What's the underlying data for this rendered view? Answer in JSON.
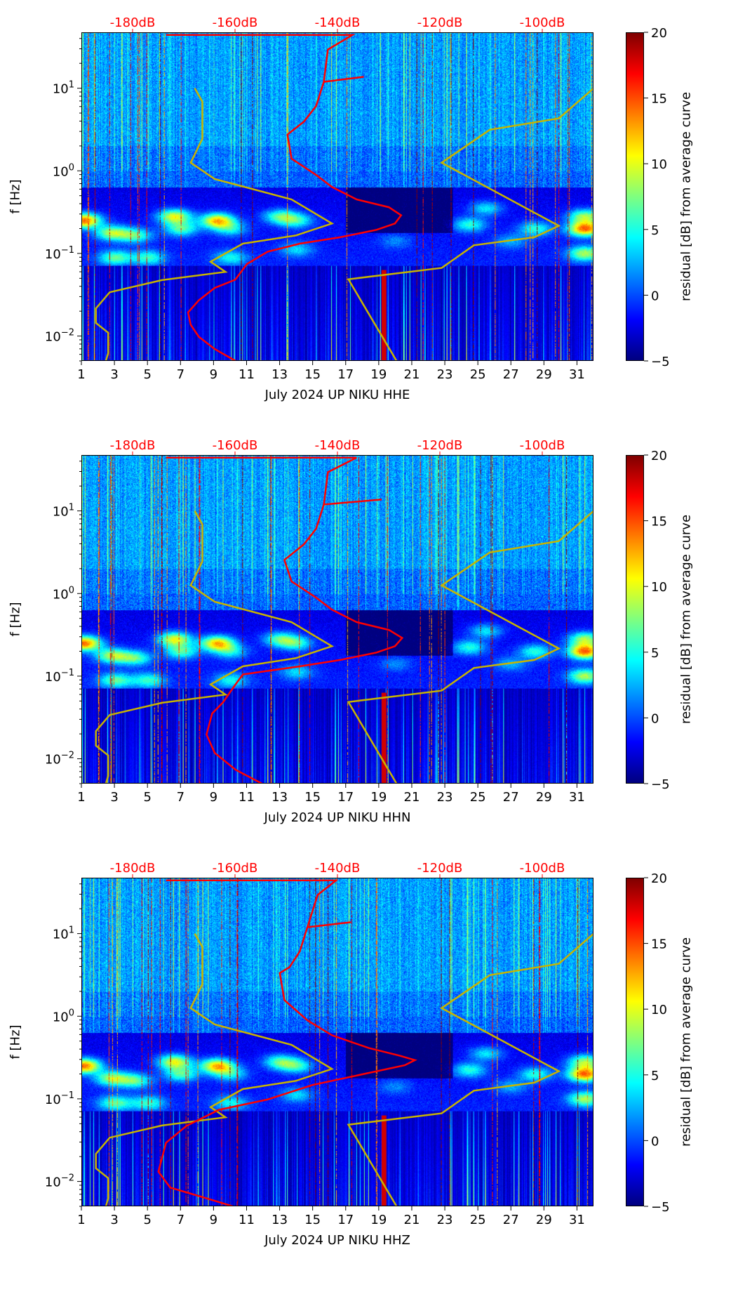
{
  "chart_data": [
    {
      "type": "heatmap",
      "xlabel": "July 2024 UP NIKU  HHE",
      "ylabel": "f [Hz]",
      "xlim": [
        1,
        32
      ],
      "ylim": [
        0.005,
        47.5
      ],
      "yscale": "log",
      "xticks": [
        1,
        3,
        5,
        7,
        9,
        11,
        13,
        15,
        17,
        19,
        21,
        23,
        25,
        27,
        29,
        31
      ],
      "yticks_exp": [
        -2,
        -1,
        0,
        1
      ],
      "top_axis": {
        "range": [
          -190,
          -90
        ],
        "ticks": [
          -180,
          -160,
          -140,
          -120,
          -100
        ],
        "labels": [
          "-180dB",
          "-160dB",
          "-140dB",
          "-120dB",
          "-100dB"
        ]
      },
      "colorbar": {
        "label": "residual [dB] from average curve",
        "range": [
          -5,
          20
        ],
        "ticks": [
          -5,
          0,
          5,
          10,
          15,
          20
        ],
        "tick_labels": [
          "−5",
          "0",
          "5",
          "10",
          "15",
          "20"
        ]
      },
      "series": {
        "average_curve": {
          "color": "#ff0000",
          "points": [
            [
              -173.6,
              45
            ],
            [
              -137.2,
              45
            ],
            [
              -142,
              30
            ],
            [
              -142.8,
              12.2
            ],
            [
              -135,
              14
            ],
            [
              -142.8,
              12.2
            ],
            [
              -144.3,
              6.2
            ],
            [
              -146.7,
              4
            ],
            [
              -149.9,
              2.8
            ],
            [
              -149.1,
              1.43
            ],
            [
              -144.3,
              0.91
            ],
            [
              -141.2,
              0.65
            ],
            [
              -136.4,
              0.46
            ],
            [
              -130.1,
              0.37
            ],
            [
              -127.7,
              0.295
            ],
            [
              -128.9,
              0.235
            ],
            [
              -132.5,
              0.197
            ],
            [
              -139.6,
              0.16
            ],
            [
              -147.5,
              0.134
            ],
            [
              -153.8,
              0.107
            ],
            [
              -157.8,
              0.076
            ],
            [
              -160.1,
              0.049
            ],
            [
              -164.1,
              0.039
            ],
            [
              -167.2,
              0.0276
            ],
            [
              -169.3,
              0.0197
            ],
            [
              -168.8,
              0.014
            ],
            [
              -167.2,
              0.01
            ],
            [
              -164.1,
              0.0071
            ],
            [
              -159.8,
              0.005
            ]
          ]
        },
        "low_noise_model": {
          "color": "#c8b400",
          "points": [
            [
              -168,
              10.2
            ],
            [
              -166.5,
              7
            ],
            [
              -166.5,
              2.5
            ],
            [
              -168.8,
              1.28
            ],
            [
              -164.1,
              0.81
            ],
            [
              -149.1,
              0.46
            ],
            [
              -141.2,
              0.235
            ],
            [
              -148.3,
              0.168
            ],
            [
              -158.6,
              0.134
            ],
            [
              -164.9,
              0.081
            ],
            [
              -162,
              0.061
            ],
            [
              -174.4,
              0.0485
            ],
            [
              -184.6,
              0.0346
            ],
            [
              -187.3,
              0.022
            ],
            [
              -187.3,
              0.0147
            ],
            [
              -184.9,
              0.0112
            ],
            [
              -184.9,
              0.00635
            ],
            [
              -185.4,
              0.005
            ]
          ]
        },
        "high_noise_model": {
          "color": "#c8b400",
          "points": [
            [
              -90.1,
              10.2
            ],
            [
              -96.9,
              4.4
            ],
            [
              -110.4,
              3.2
            ],
            [
              -119.8,
              1.28
            ],
            [
              -96.9,
              0.22
            ],
            [
              -101.7,
              0.16
            ],
            [
              -113.5,
              0.128
            ],
            [
              -119.8,
              0.068
            ],
            [
              -138,
              0.0497
            ],
            [
              -128.5,
              0.005
            ]
          ]
        }
      }
    },
    {
      "type": "heatmap",
      "xlabel": "July 2024 UP NIKU  HHN",
      "ylabel": "f [Hz]",
      "xlim": [
        1,
        32
      ],
      "ylim": [
        0.005,
        47.5
      ],
      "yscale": "log",
      "xticks": [
        1,
        3,
        5,
        7,
        9,
        11,
        13,
        15,
        17,
        19,
        21,
        23,
        25,
        27,
        29,
        31
      ],
      "yticks_exp": [
        -2,
        -1,
        0,
        1
      ],
      "top_axis": {
        "range": [
          -190,
          -90
        ],
        "ticks": [
          -180,
          -160,
          -140,
          -120,
          -100
        ],
        "labels": [
          "-180dB",
          "-160dB",
          "-140dB",
          "-120dB",
          "-100dB"
        ]
      },
      "colorbar": {
        "label": "residual [dB] from average curve",
        "range": [
          -5,
          20
        ],
        "ticks": [
          -5,
          0,
          5,
          10,
          15,
          20
        ],
        "tick_labels": [
          "−5",
          "0",
          "5",
          "10",
          "15",
          "20"
        ]
      },
      "series": {
        "average_curve": {
          "color": "#ff0000",
          "points": [
            [
              -173.6,
              45
            ],
            [
              -136.4,
              45
            ],
            [
              -142,
              30
            ],
            [
              -142.8,
              12.2
            ],
            [
              -131.5,
              14
            ],
            [
              -142.8,
              12.2
            ],
            [
              -144.3,
              6.2
            ],
            [
              -146.7,
              4
            ],
            [
              -150.5,
              2.6
            ],
            [
              -149.1,
              1.43
            ],
            [
              -144.3,
              0.91
            ],
            [
              -141.2,
              0.65
            ],
            [
              -136.4,
              0.46
            ],
            [
              -130.1,
              0.37
            ],
            [
              -127.5,
              0.295
            ],
            [
              -128.9,
              0.235
            ],
            [
              -132.5,
              0.197
            ],
            [
              -139.6,
              0.16
            ],
            [
              -147.5,
              0.134
            ],
            [
              -158.6,
              0.107
            ],
            [
              -160.1,
              0.08
            ],
            [
              -162.5,
              0.049
            ],
            [
              -164.6,
              0.036
            ],
            [
              -165.7,
              0.02
            ],
            [
              -164.1,
              0.012
            ],
            [
              -160,
              0.0075
            ],
            [
              -154.6,
              0.005
            ]
          ]
        },
        "low_noise_model": {
          "color": "#c8b400",
          "points": [
            [
              -168,
              10.2
            ],
            [
              -166.5,
              7
            ],
            [
              -166.5,
              2.5
            ],
            [
              -168.8,
              1.28
            ],
            [
              -164.1,
              0.81
            ],
            [
              -149.1,
              0.46
            ],
            [
              -141.2,
              0.235
            ],
            [
              -148.3,
              0.168
            ],
            [
              -158.6,
              0.134
            ],
            [
              -164.9,
              0.081
            ],
            [
              -162,
              0.061
            ],
            [
              -174.4,
              0.0485
            ],
            [
              -184.6,
              0.0346
            ],
            [
              -187.3,
              0.022
            ],
            [
              -187.3,
              0.0147
            ],
            [
              -184.9,
              0.0112
            ],
            [
              -184.9,
              0.00635
            ],
            [
              -185.4,
              0.005
            ]
          ]
        },
        "high_noise_model": {
          "color": "#c8b400",
          "points": [
            [
              -90.1,
              10.2
            ],
            [
              -96.9,
              4.4
            ],
            [
              -110.4,
              3.2
            ],
            [
              -119.8,
              1.28
            ],
            [
              -96.9,
              0.22
            ],
            [
              -101.7,
              0.16
            ],
            [
              -113.5,
              0.128
            ],
            [
              -119.8,
              0.068
            ],
            [
              -138,
              0.0497
            ],
            [
              -128.5,
              0.005
            ]
          ]
        }
      }
    },
    {
      "type": "heatmap",
      "xlabel": "July 2024 UP NIKU  HHZ",
      "ylabel": "f [Hz]",
      "xlim": [
        1,
        32
      ],
      "ylim": [
        0.005,
        47.5
      ],
      "yscale": "log",
      "xticks": [
        1,
        3,
        5,
        7,
        9,
        11,
        13,
        15,
        17,
        19,
        21,
        23,
        25,
        27,
        29,
        31
      ],
      "yticks_exp": [
        -2,
        -1,
        0,
        1
      ],
      "top_axis": {
        "range": [
          -190,
          -90
        ],
        "ticks": [
          -180,
          -160,
          -140,
          -120,
          -100
        ],
        "labels": [
          "-180dB",
          "-160dB",
          "-140dB",
          "-120dB",
          "-100dB"
        ]
      },
      "colorbar": {
        "label": "residual [dB] from average curve",
        "range": [
          -5,
          20
        ],
        "ticks": [
          -5,
          0,
          5,
          10,
          15,
          20
        ],
        "tick_labels": [
          "−5",
          "0",
          "5",
          "10",
          "15",
          "20"
        ]
      },
      "series": {
        "average_curve": {
          "color": "#ff0000",
          "points": [
            [
              -173.6,
              45
            ],
            [
              -140.4,
              45
            ],
            [
              -144,
              30
            ],
            [
              -146,
              12.2
            ],
            [
              -137.5,
              14
            ],
            [
              -146,
              12.2
            ],
            [
              -147.5,
              6.2
            ],
            [
              -149.5,
              4
            ],
            [
              -151.4,
              3.4
            ],
            [
              -150.5,
              1.6
            ],
            [
              -146,
              0.91
            ],
            [
              -141.2,
              0.6
            ],
            [
              -134,
              0.42
            ],
            [
              -128,
              0.34
            ],
            [
              -125,
              0.3
            ],
            [
              -127,
              0.26
            ],
            [
              -134,
              0.21
            ],
            [
              -145,
              0.15
            ],
            [
              -153.8,
              0.1
            ],
            [
              -163.3,
              0.075
            ],
            [
              -169.6,
              0.048
            ],
            [
              -173.6,
              0.03
            ],
            [
              -175.1,
              0.0134
            ],
            [
              -172.8,
              0.0086
            ],
            [
              -166.5,
              0.0066
            ],
            [
              -160.1,
              0.005
            ]
          ]
        },
        "low_noise_model": {
          "color": "#c8b400",
          "points": [
            [
              -168,
              10.2
            ],
            [
              -166.5,
              7
            ],
            [
              -166.5,
              2.5
            ],
            [
              -168.8,
              1.28
            ],
            [
              -164.1,
              0.81
            ],
            [
              -149.1,
              0.46
            ],
            [
              -141.2,
              0.235
            ],
            [
              -148.3,
              0.168
            ],
            [
              -158.6,
              0.134
            ],
            [
              -164.9,
              0.081
            ],
            [
              -162,
              0.061
            ],
            [
              -174.4,
              0.0485
            ],
            [
              -184.6,
              0.0346
            ],
            [
              -187.3,
              0.022
            ],
            [
              -187.3,
              0.0147
            ],
            [
              -184.9,
              0.0112
            ],
            [
              -184.9,
              0.00635
            ],
            [
              -185.4,
              0.005
            ]
          ]
        },
        "high_noise_model": {
          "color": "#c8b400",
          "points": [
            [
              -90.1,
              10.2
            ],
            [
              -96.9,
              4.4
            ],
            [
              -110.4,
              3.2
            ],
            [
              -119.8,
              1.28
            ],
            [
              -96.9,
              0.22
            ],
            [
              -101.7,
              0.16
            ],
            [
              -113.5,
              0.128
            ],
            [
              -119.8,
              0.068
            ],
            [
              -138,
              0.0497
            ],
            [
              -128.5,
              0.005
            ]
          ]
        }
      }
    }
  ]
}
